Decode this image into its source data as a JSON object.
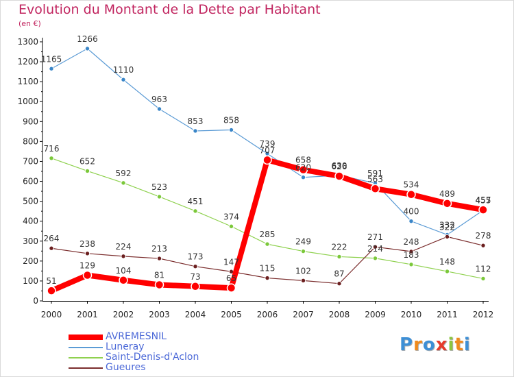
{
  "header": {
    "title": "Evolution du Montant de la Dette par Habitant",
    "subtitle": "(en €)"
  },
  "logo": {
    "text": "Proxiti",
    "letters": [
      {
        "ch": "P",
        "color": "#3d8fd6"
      },
      {
        "ch": "r",
        "color": "#f08a1c"
      },
      {
        "ch": "o",
        "color": "#3d8fd6"
      },
      {
        "ch": "x",
        "color": "#e63a2c"
      },
      {
        "ch": "i",
        "color": "#8cc63f"
      },
      {
        "ch": "t",
        "color": "#f08a1c"
      },
      {
        "ch": "i",
        "color": "#3d8fd6"
      }
    ]
  },
  "chart_data": {
    "type": "line",
    "x": [
      "2000",
      "2001",
      "2002",
      "2003",
      "2004",
      "2005",
      "2006",
      "2007",
      "2008",
      "2009",
      "2010",
      "2011",
      "2012"
    ],
    "ylim": [
      0,
      1300
    ],
    "yticks": [
      0,
      100,
      200,
      300,
      400,
      500,
      600,
      700,
      800,
      900,
      1000,
      1100,
      1200,
      1300
    ],
    "grid": false,
    "legend_position": "bottom-left",
    "series": [
      {
        "name": "Luneray",
        "color": "#5b9bd5",
        "dot": "#3a86c8",
        "values": [
          1165,
          1266,
          1110,
          963,
          853,
          858,
          739,
          620,
          630,
          591,
          400,
          332,
          455
        ]
      },
      {
        "name": "Saint-Denis-d'Aclon",
        "color": "#8fd14f",
        "dot": "#7bc83a",
        "values": [
          716,
          652,
          592,
          523,
          451,
          374,
          285,
          249,
          222,
          214,
          183,
          148,
          112
        ]
      },
      {
        "name": "Gueures",
        "color": "#7a2c2c",
        "dot": "#6b1f1f",
        "values": [
          264,
          238,
          224,
          213,
          173,
          147,
          115,
          102,
          87,
          271,
          248,
          322,
          278
        ]
      },
      {
        "name": "AVREMESNIL",
        "color": "#ff0000",
        "dot": "#ff0000",
        "values": [
          51,
          129,
          104,
          81,
          73,
          65,
          707,
          658,
          626,
          563,
          534,
          489,
          457
        ]
      }
    ]
  }
}
